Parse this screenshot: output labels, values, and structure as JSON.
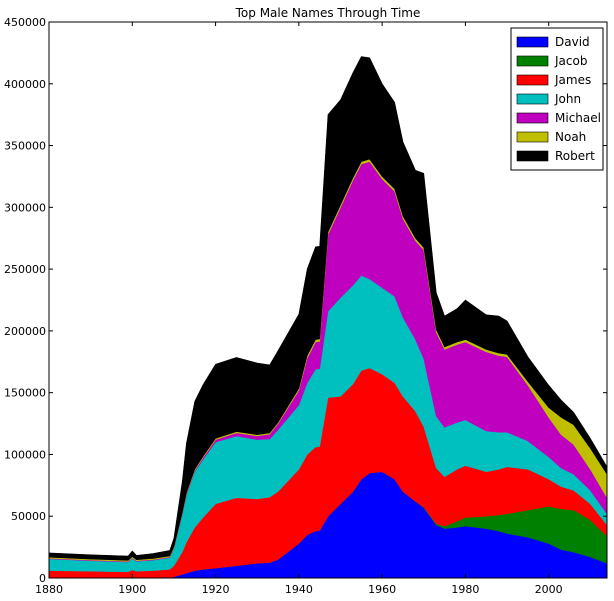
{
  "chart_data": {
    "type": "area",
    "stacked": true,
    "title": "Top Male Names Through Time",
    "xlabel": "",
    "ylabel": "",
    "xlim": [
      1880,
      2014
    ],
    "ylim": [
      0,
      450000
    ],
    "x_ticks": [
      1880,
      1900,
      1920,
      1940,
      1960,
      1980,
      2000
    ],
    "y_ticks": [
      0,
      50000,
      100000,
      150000,
      200000,
      250000,
      300000,
      350000,
      400000,
      450000
    ],
    "grid": false,
    "legend_position": "top-right",
    "x": [
      1880,
      1890,
      1899,
      1900,
      1901,
      1905,
      1909,
      1910,
      1912,
      1913,
      1915,
      1917,
      1920,
      1925,
      1930,
      1933,
      1935,
      1940,
      1942,
      1944,
      1945,
      1947,
      1950,
      1953,
      1955,
      1957,
      1960,
      1963,
      1965,
      1968,
      1970,
      1973,
      1975,
      1978,
      1980,
      1985,
      1988,
      1990,
      1995,
      2000,
      2003,
      2006,
      2010,
      2014
    ],
    "series": [
      {
        "name": "David",
        "color": "#0000ff",
        "values": [
          0,
          0,
          0,
          0,
          0,
          0,
          0,
          1000,
          3000,
          4000,
          6000,
          7000,
          8000,
          10000,
          12000,
          12500,
          15000,
          28000,
          35000,
          38000,
          38500,
          50000,
          60000,
          70000,
          80000,
          85000,
          86000,
          80000,
          70000,
          62000,
          57000,
          43000,
          40000,
          41000,
          42000,
          40000,
          38000,
          36000,
          33000,
          28000,
          23000,
          21000,
          17000,
          12000
        ]
      },
      {
        "name": "Jacob",
        "color": "#008000",
        "values": [
          0,
          0,
          0,
          0,
          0,
          0,
          0,
          0,
          0,
          0,
          0,
          0,
          0,
          0,
          0,
          0,
          0,
          0,
          0,
          0,
          0,
          0,
          0,
          0,
          0,
          0,
          0,
          0,
          0,
          0,
          500,
          1000,
          2000,
          5000,
          7000,
          10000,
          13000,
          16000,
          22000,
          30000,
          33000,
          34000,
          30000,
          22000
        ]
      },
      {
        "name": "James",
        "color": "#ff0000",
        "values": [
          6000,
          5500,
          5000,
          6500,
          5500,
          6000,
          7000,
          9000,
          18000,
          25000,
          35000,
          42000,
          52000,
          55000,
          52000,
          53000,
          55000,
          60000,
          65000,
          68000,
          68000,
          96000,
          87000,
          87000,
          88000,
          85000,
          79000,
          78000,
          77000,
          73000,
          65000,
          45000,
          40000,
          42000,
          42000,
          36000,
          37000,
          38000,
          33000,
          22000,
          18000,
          16000,
          13000,
          9000
        ]
      },
      {
        "name": "John",
        "color": "#00bfbf",
        "values": [
          9500,
          8500,
          8000,
          9500,
          8000,
          8500,
          9500,
          14000,
          30000,
          38000,
          45000,
          47000,
          50000,
          50000,
          48000,
          47000,
          50000,
          52000,
          58000,
          63000,
          63000,
          70000,
          80000,
          80000,
          77000,
          72000,
          70000,
          70000,
          64000,
          58000,
          55000,
          42000,
          40000,
          38000,
          37000,
          33000,
          30000,
          28000,
          23000,
          18000,
          15000,
          13000,
          11000,
          9000
        ]
      },
      {
        "name": "Michael",
        "color": "#bf00bf",
        "values": [
          500,
          500,
          500,
          500,
          500,
          500,
          500,
          500,
          1000,
          1000,
          1000,
          1500,
          2000,
          2500,
          3000,
          4000,
          5000,
          12000,
          20000,
          22000,
          22000,
          62000,
          73000,
          85000,
          90000,
          95000,
          88000,
          85000,
          80000,
          80000,
          88000,
          68000,
          63000,
          63000,
          63000,
          64000,
          62000,
          61000,
          45000,
          32000,
          27000,
          24000,
          17000,
          13000
        ]
      },
      {
        "name": "Noah",
        "color": "#bfbf00",
        "values": [
          800,
          800,
          800,
          900,
          800,
          800,
          800,
          800,
          1000,
          1000,
          1000,
          1000,
          1000,
          1000,
          1000,
          1000,
          1000,
          1500,
          2000,
          2000,
          2000,
          2000,
          2000,
          2000,
          2000,
          2000,
          2000,
          2000,
          2000,
          2000,
          2000,
          2000,
          2000,
          2000,
          2000,
          2000,
          2000,
          2000,
          3000,
          8000,
          14000,
          16000,
          17000,
          19000
        ]
      },
      {
        "name": "Robert",
        "color": "#000000",
        "values": [
          3500,
          3500,
          3500,
          4500,
          3500,
          4000,
          4500,
          7000,
          25000,
          40000,
          55000,
          58000,
          60000,
          60000,
          58000,
          55000,
          58000,
          60000,
          70000,
          75000,
          75000,
          95000,
          85000,
          85000,
          85000,
          82000,
          75000,
          70000,
          60000,
          55000,
          60000,
          30000,
          25000,
          27000,
          32000,
          28000,
          30000,
          27000,
          20000,
          18000,
          14000,
          10000,
          8000,
          6000
        ]
      }
    ]
  }
}
